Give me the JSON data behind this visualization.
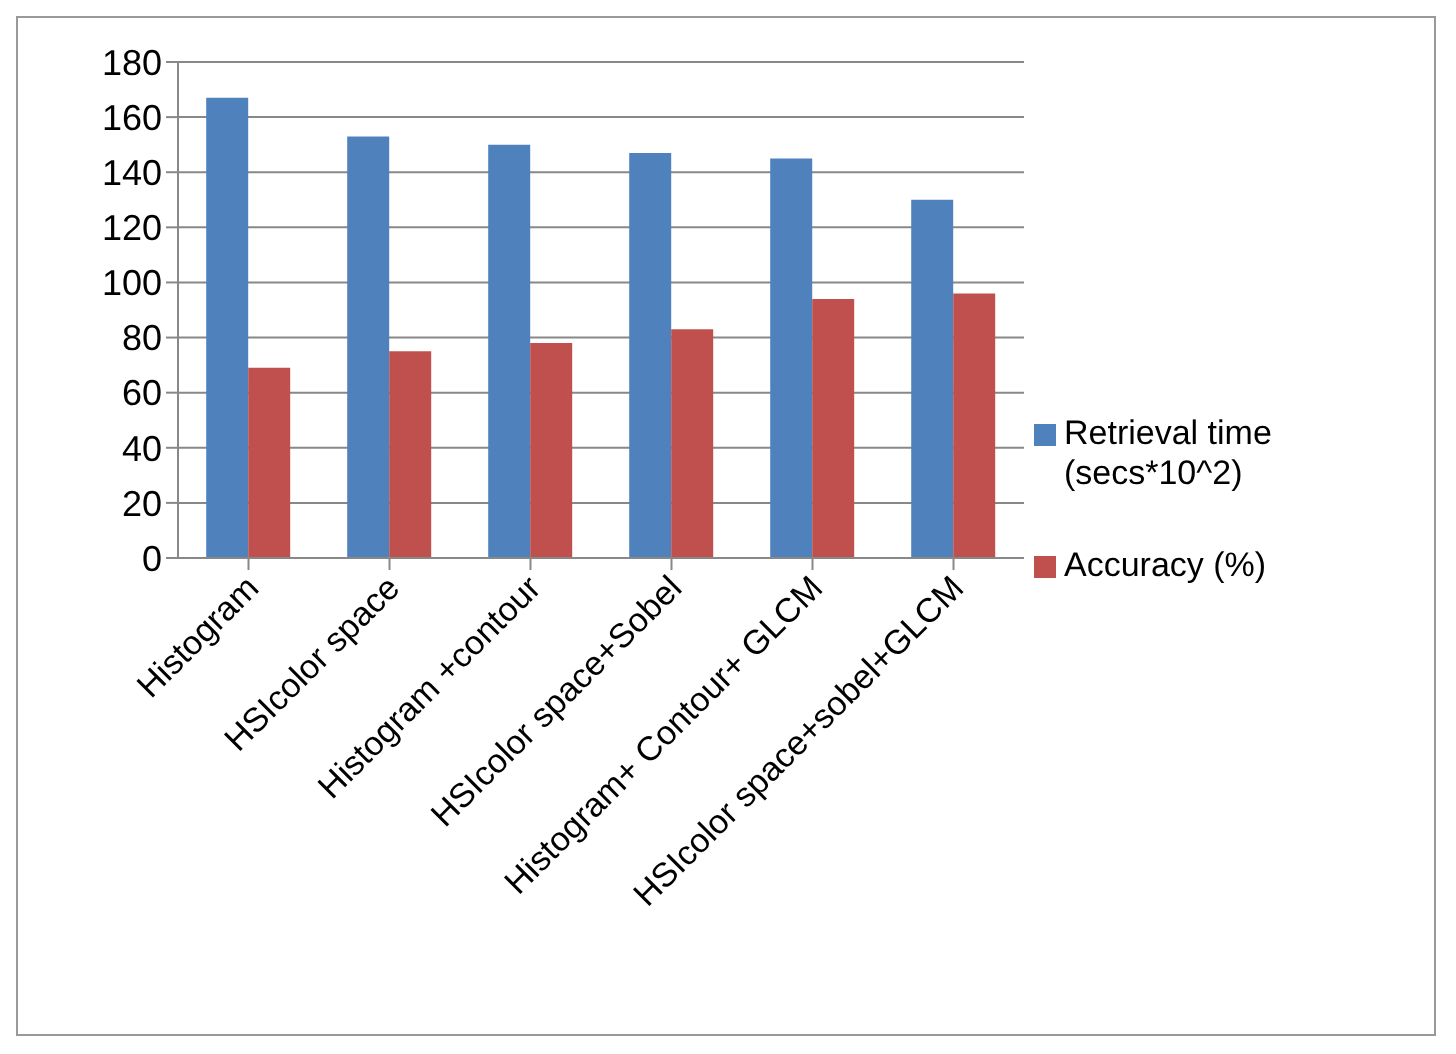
{
  "chart_data": {
    "type": "bar",
    "categories": [
      "Histogram",
      "HSIcolor space",
      "Histogram +contour",
      "HSIcolor space+Sobel",
      "Histogram+ Contour+ GLCM",
      "HSIcolor space+sobel+GLCM"
    ],
    "series": [
      {
        "name": "Retrieval time (secs*10^2)",
        "color": "#4f81bd",
        "values": [
          167,
          153,
          150,
          147,
          145,
          130
        ]
      },
      {
        "name": "Accuracy (%)",
        "color": "#c0504d",
        "values": [
          69,
          75,
          78,
          83,
          94,
          96
        ]
      }
    ],
    "ylim": [
      0,
      180
    ],
    "yticks": [
      0,
      20,
      40,
      60,
      80,
      100,
      120,
      140,
      160,
      180
    ],
    "grid": "y",
    "legend": "right"
  }
}
